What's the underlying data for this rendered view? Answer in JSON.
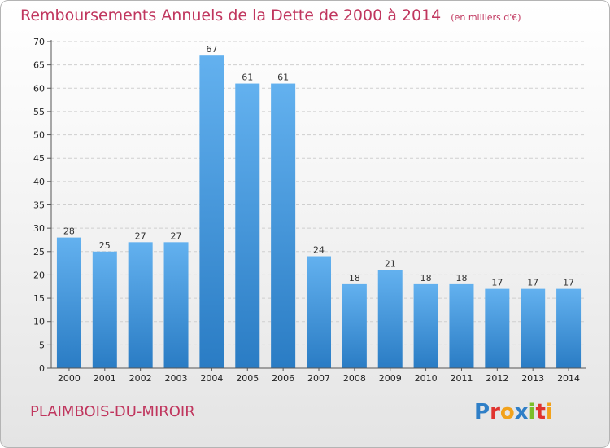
{
  "chart_data": {
    "type": "bar",
    "title": "Remboursements Annuels de la Dette de 2000 à 2014",
    "subtitle": "(en milliers d'€)",
    "categories": [
      "2000",
      "2001",
      "2002",
      "2003",
      "2004",
      "2005",
      "2006",
      "2007",
      "2008",
      "2009",
      "2010",
      "2011",
      "2012",
      "2013",
      "2014"
    ],
    "values": [
      28,
      25,
      27,
      27,
      67,
      61,
      61,
      24,
      18,
      21,
      18,
      18,
      17,
      17,
      17
    ],
    "ylim": [
      0,
      70
    ],
    "yticks": [
      0,
      5,
      10,
      15,
      20,
      25,
      30,
      35,
      40,
      45,
      50,
      55,
      60,
      65,
      70
    ],
    "grid": true,
    "bar_color": "#3f95dc"
  },
  "footer": {
    "town": "PLAIMBOIS-DU-MIROIR"
  },
  "logo": {
    "letters": [
      "P",
      "r",
      "o",
      "x",
      "i",
      "t",
      "i"
    ],
    "colors": [
      "#2f7fc7",
      "#e0342f",
      "#f2a21b",
      "#2f7fc7",
      "#7bbf2a",
      "#e0342f",
      "#f2a21b"
    ]
  }
}
